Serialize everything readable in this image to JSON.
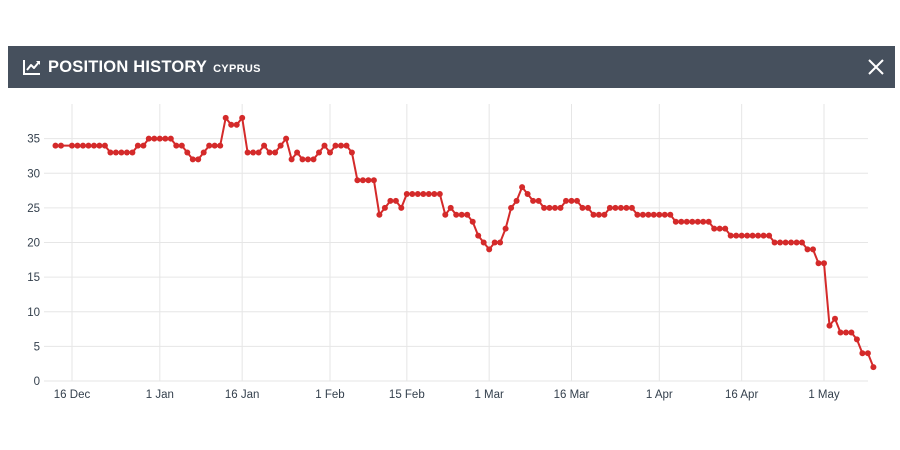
{
  "header": {
    "title": "POSITION HISTORY",
    "subtitle": "CYPRUS",
    "icon": "trend-line-icon",
    "close_icon": "close-icon",
    "background": "#46505d"
  },
  "chart_data": {
    "type": "line",
    "title": "POSITION HISTORY",
    "xlabel": "",
    "ylabel": "",
    "ylim": [
      0,
      40
    ],
    "y_ticks": [
      0,
      5,
      10,
      15,
      20,
      25,
      30,
      35
    ],
    "x_ticks": [
      "16 Dec",
      "1 Jan",
      "16 Jan",
      "1 Feb",
      "15 Feb",
      "1 Mar",
      "16 Mar",
      "1 Apr",
      "16 Apr",
      "1 May"
    ],
    "x_tick_dates": [
      "2023-12-16",
      "2024-01-01",
      "2024-01-16",
      "2024-02-01",
      "2024-02-15",
      "2024-03-01",
      "2024-03-16",
      "2024-04-01",
      "2024-04-16",
      "2024-05-01"
    ],
    "grid": true,
    "color": "#d42a2a",
    "series": [
      {
        "points": [
          [
            "2023-12-13",
            34
          ],
          [
            "2023-12-14",
            34
          ],
          [
            "2023-12-16",
            34
          ],
          [
            "2023-12-17",
            34
          ],
          [
            "2023-12-18",
            34
          ],
          [
            "2023-12-19",
            34
          ],
          [
            "2023-12-20",
            34
          ],
          [
            "2023-12-21",
            34
          ],
          [
            "2023-12-22",
            34
          ],
          [
            "2023-12-23",
            33
          ],
          [
            "2023-12-24",
            33
          ],
          [
            "2023-12-25",
            33
          ],
          [
            "2023-12-26",
            33
          ],
          [
            "2023-12-27",
            33
          ],
          [
            "2023-12-28",
            34
          ],
          [
            "2023-12-29",
            34
          ],
          [
            "2023-12-30",
            35
          ],
          [
            "2023-12-31",
            35
          ],
          [
            "2024-01-01",
            35
          ],
          [
            "2024-01-02",
            35
          ],
          [
            "2024-01-03",
            35
          ],
          [
            "2024-01-04",
            34
          ],
          [
            "2024-01-05",
            34
          ],
          [
            "2024-01-06",
            33
          ],
          [
            "2024-01-07",
            32
          ],
          [
            "2024-01-08",
            32
          ],
          [
            "2024-01-09",
            33
          ],
          [
            "2024-01-10",
            34
          ],
          [
            "2024-01-11",
            34
          ],
          [
            "2024-01-12",
            34
          ],
          [
            "2024-01-13",
            38
          ],
          [
            "2024-01-14",
            37
          ],
          [
            "2024-01-15",
            37
          ],
          [
            "2024-01-16",
            38
          ],
          [
            "2024-01-17",
            33
          ],
          [
            "2024-01-18",
            33
          ],
          [
            "2024-01-19",
            33
          ],
          [
            "2024-01-20",
            34
          ],
          [
            "2024-01-21",
            33
          ],
          [
            "2024-01-22",
            33
          ],
          [
            "2024-01-23",
            34
          ],
          [
            "2024-01-24",
            35
          ],
          [
            "2024-01-25",
            32
          ],
          [
            "2024-01-26",
            33
          ],
          [
            "2024-01-27",
            32
          ],
          [
            "2024-01-28",
            32
          ],
          [
            "2024-01-29",
            32
          ],
          [
            "2024-01-30",
            33
          ],
          [
            "2024-01-31",
            34
          ],
          [
            "2024-02-01",
            33
          ],
          [
            "2024-02-02",
            34
          ],
          [
            "2024-02-03",
            34
          ],
          [
            "2024-02-04",
            34
          ],
          [
            "2024-02-05",
            33
          ],
          [
            "2024-02-06",
            29
          ],
          [
            "2024-02-07",
            29
          ],
          [
            "2024-02-08",
            29
          ],
          [
            "2024-02-09",
            29
          ],
          [
            "2024-02-10",
            24
          ],
          [
            "2024-02-11",
            25
          ],
          [
            "2024-02-12",
            26
          ],
          [
            "2024-02-13",
            26
          ],
          [
            "2024-02-14",
            25
          ],
          [
            "2024-02-15",
            27
          ],
          [
            "2024-02-16",
            27
          ],
          [
            "2024-02-17",
            27
          ],
          [
            "2024-02-18",
            27
          ],
          [
            "2024-02-19",
            27
          ],
          [
            "2024-02-20",
            27
          ],
          [
            "2024-02-21",
            27
          ],
          [
            "2024-02-22",
            24
          ],
          [
            "2024-02-23",
            25
          ],
          [
            "2024-02-24",
            24
          ],
          [
            "2024-02-25",
            24
          ],
          [
            "2024-02-26",
            24
          ],
          [
            "2024-02-27",
            23
          ],
          [
            "2024-02-28",
            21
          ],
          [
            "2024-02-29",
            20
          ],
          [
            "2024-03-01",
            19
          ],
          [
            "2024-03-02",
            20
          ],
          [
            "2024-03-03",
            20
          ],
          [
            "2024-03-04",
            22
          ],
          [
            "2024-03-05",
            25
          ],
          [
            "2024-03-06",
            26
          ],
          [
            "2024-03-07",
            28
          ],
          [
            "2024-03-08",
            27
          ],
          [
            "2024-03-09",
            26
          ],
          [
            "2024-03-10",
            26
          ],
          [
            "2024-03-11",
            25
          ],
          [
            "2024-03-12",
            25
          ],
          [
            "2024-03-13",
            25
          ],
          [
            "2024-03-14",
            25
          ],
          [
            "2024-03-15",
            26
          ],
          [
            "2024-03-16",
            26
          ],
          [
            "2024-03-17",
            26
          ],
          [
            "2024-03-18",
            25
          ],
          [
            "2024-03-19",
            25
          ],
          [
            "2024-03-20",
            24
          ],
          [
            "2024-03-21",
            24
          ],
          [
            "2024-03-22",
            24
          ],
          [
            "2024-03-23",
            25
          ],
          [
            "2024-03-24",
            25
          ],
          [
            "2024-03-25",
            25
          ],
          [
            "2024-03-26",
            25
          ],
          [
            "2024-03-27",
            25
          ],
          [
            "2024-03-28",
            24
          ],
          [
            "2024-03-29",
            24
          ],
          [
            "2024-03-30",
            24
          ],
          [
            "2024-03-31",
            24
          ],
          [
            "2024-04-01",
            24
          ],
          [
            "2024-04-02",
            24
          ],
          [
            "2024-04-03",
            24
          ],
          [
            "2024-04-04",
            23
          ],
          [
            "2024-04-05",
            23
          ],
          [
            "2024-04-06",
            23
          ],
          [
            "2024-04-07",
            23
          ],
          [
            "2024-04-08",
            23
          ],
          [
            "2024-04-09",
            23
          ],
          [
            "2024-04-10",
            23
          ],
          [
            "2024-04-11",
            22
          ],
          [
            "2024-04-12",
            22
          ],
          [
            "2024-04-13",
            22
          ],
          [
            "2024-04-14",
            21
          ],
          [
            "2024-04-15",
            21
          ],
          [
            "2024-04-16",
            21
          ],
          [
            "2024-04-17",
            21
          ],
          [
            "2024-04-18",
            21
          ],
          [
            "2024-04-19",
            21
          ],
          [
            "2024-04-20",
            21
          ],
          [
            "2024-04-21",
            21
          ],
          [
            "2024-04-22",
            20
          ],
          [
            "2024-04-23",
            20
          ],
          [
            "2024-04-24",
            20
          ],
          [
            "2024-04-25",
            20
          ],
          [
            "2024-04-26",
            20
          ],
          [
            "2024-04-27",
            20
          ],
          [
            "2024-04-28",
            19
          ],
          [
            "2024-04-29",
            19
          ],
          [
            "2024-04-30",
            17
          ],
          [
            "2024-05-01",
            17
          ],
          [
            "2024-05-02",
            8
          ],
          [
            "2024-05-03",
            9
          ],
          [
            "2024-05-04",
            7
          ],
          [
            "2024-05-05",
            7
          ],
          [
            "2024-05-06",
            7
          ],
          [
            "2024-05-07",
            6
          ],
          [
            "2024-05-08",
            4
          ],
          [
            "2024-05-09",
            4
          ],
          [
            "2024-05-10",
            2
          ]
        ]
      }
    ]
  }
}
